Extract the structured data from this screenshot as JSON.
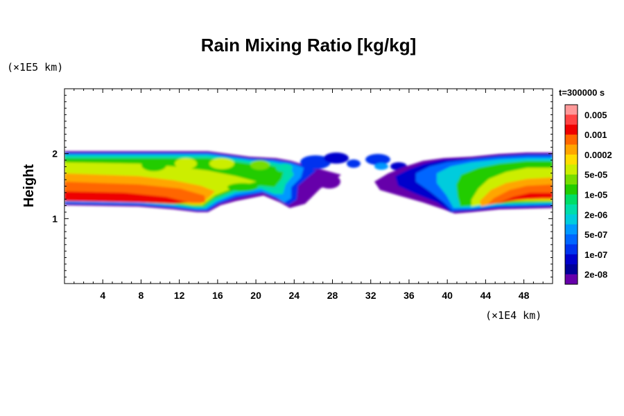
{
  "chart_data": {
    "type": "heatmap",
    "title": "Rain Mixing Ratio [kg/kg]",
    "ylabel": "Height",
    "xlabel": "",
    "x_scale_note": "(×1E4 km)",
    "y_scale_note": "(×1E5 km)",
    "time_label": "t=300000 s",
    "x_ticks": [
      4,
      8,
      12,
      16,
      20,
      24,
      28,
      32,
      36,
      40,
      44,
      48
    ],
    "y_ticks": [
      1,
      2
    ],
    "xlim": [
      0,
      51
    ],
    "ylim": [
      0,
      3
    ],
    "colorbar": {
      "labels": [
        "0.005",
        "0.001",
        "0.0002",
        "5e-05",
        "1e-05",
        "2e-06",
        "5e-07",
        "1e-07",
        "2e-08"
      ],
      "colors": [
        "#ff9999",
        "#ff4444",
        "#ee0000",
        "#ff6600",
        "#ffa500",
        "#ffdd00",
        "#ccee00",
        "#77dd00",
        "#22cc00",
        "#00dd66",
        "#00ddaa",
        "#00ccdd",
        "#0099ff",
        "#0066ff",
        "#0033ee",
        "#0000cc",
        "#000099",
        "#6600aa"
      ]
    },
    "fields": [
      {
        "region": "left band",
        "x_range": [
          0,
          16
        ],
        "y_range": [
          1.1,
          2.0
        ],
        "max_level": "0.001"
      },
      {
        "region": "middle clouds",
        "x_range": [
          16,
          29
        ],
        "y_range": [
          1.2,
          2.0
        ],
        "max_level": "5e-05"
      },
      {
        "region": "right band",
        "x_range": [
          33,
          51
        ],
        "y_range": [
          1.1,
          2.0
        ],
        "max_level": "0.001"
      }
    ]
  }
}
